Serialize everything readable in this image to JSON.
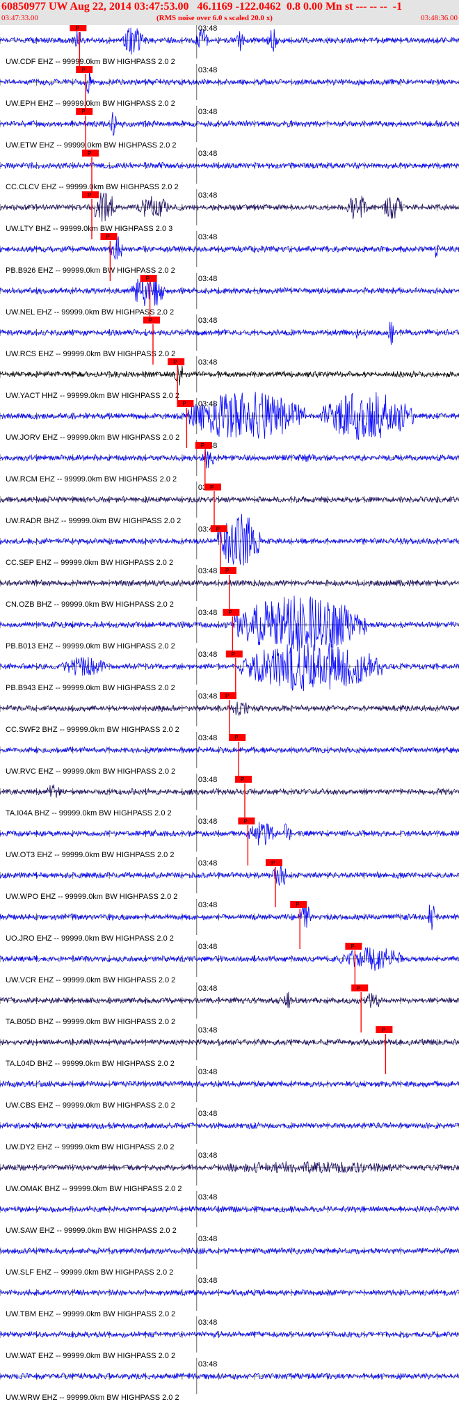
{
  "header": {
    "title": "60850977 UW Aug 22, 2014 03:47:53.00   46.1169 -122.0462  0.8 0.00 Mn st --- -- --  -1",
    "start_time": "03:47:33.00",
    "noise_note": "(RMS noise over 6.0 s scaled 20.0 x)",
    "end_time": "03:48:36.00"
  },
  "chart_data": {
    "type": "line",
    "title": "60850977 UW Aug 22, 2014 03:47:53.00   46.1169 -122.0462  0.8 0.00 Mn st --- -- --  -1",
    "x_range": [
      "03:47:33.00",
      "03:48:36.00"
    ],
    "minute_marker_label": "03:48",
    "pick_label": "P",
    "grid": false,
    "colors": {
      "trace_ehz": "#0000ff",
      "trace_bhz": "#1a0a5e",
      "trace_hhz": "#000000",
      "pick": "#ff0000",
      "axis": "#000000"
    },
    "traces": [
      {
        "label": "UW.CDF EHZ -- 99999.0km BW  HIGHPASS  2.0  2",
        "pick_s": 26,
        "bursts": [
          [
            24,
            27,
            2.5
          ],
          [
            40,
            47,
            3.5
          ],
          [
            64,
            68,
            3.0
          ],
          [
            77,
            80,
            2.8
          ],
          [
            87,
            91,
            3.0
          ]
        ]
      },
      {
        "label": "UW.EPH EHZ -- 99999.0km BW  HIGHPASS  2.0  2",
        "pick_s": 28,
        "bursts": [
          [
            28,
            30,
            4.0
          ]
        ]
      },
      {
        "label": "UW.ETW EHZ -- 99999.0km BW  HIGHPASS  2.0  2",
        "pick_s": 28,
        "bursts": [
          [
            28,
            29,
            1.5
          ],
          [
            36,
            38,
            4.0
          ],
          [
            94,
            95,
            1.5
          ]
        ]
      },
      {
        "label": "CC.CLCV EHZ -- 99999.0km BW  HIGHPASS  2.0  2",
        "pick_s": 30,
        "bursts": [
          [
            30,
            32,
            1.0
          ]
        ]
      },
      {
        "label": "UW.LTY BHZ -- 99999.0km BW  HIGHPASS  2.0  3",
        "pick_s": 30,
        "bursts": [
          [
            30,
            38,
            4.0
          ],
          [
            45,
            55,
            3.0
          ],
          [
            113,
            120,
            3.5
          ],
          [
            125,
            132,
            3.0
          ]
        ]
      },
      {
        "label": "PB.B926 EHZ -- 99999.0km BW  HIGHPASS  2.0  2",
        "pick_s": 36,
        "bursts": [
          [
            36,
            40,
            3.5
          ],
          [
            142,
            144,
            3.0
          ]
        ]
      },
      {
        "label": "UW.NEL EHZ -- 99999.0km BW  HIGHPASS  2.0  2",
        "pick_s": 49,
        "bursts": [
          [
            43,
            54,
            4.5
          ]
        ]
      },
      {
        "label": "UW.RCS EHZ -- 99999.0km BW  HIGHPASS  2.0  2",
        "pick_s": 50,
        "bursts": [
          [
            27,
            28,
            1.5
          ],
          [
            116,
            117,
            1.5
          ],
          [
            127,
            129,
            3.5
          ]
        ]
      },
      {
        "label": "UW.YACT HHZ -- 99999.0km BW  HIGHPASS  2.0  2",
        "pick_s": 58,
        "bursts": [
          [
            57,
            60,
            3.5
          ]
        ]
      },
      {
        "label": "UW.JORV EHZ -- 99999.0km BW  HIGHPASS  2.0  2",
        "pick_s": 61,
        "bursts": [
          [
            61,
            100,
            6.0
          ],
          [
            105,
            135,
            6.0
          ]
        ]
      },
      {
        "label": "UW.RCM EHZ -- 99999.0km BW  HIGHPASS  2.0  2",
        "pick_s": 67,
        "bursts": [
          [
            66,
            70,
            3.0
          ],
          [
            95,
            105,
            1.0
          ]
        ]
      },
      {
        "label": "UW.RADR BHZ -- 99999.0km BW  HIGHPASS  2.0  2",
        "pick_s": 70,
        "bursts": []
      },
      {
        "label": "CC.SEP EHZ -- 99999.0km BW  HIGHPASS  2.0  2",
        "pick_s": 72,
        "bursts": [
          [
            71,
            85,
            7.0
          ]
        ]
      },
      {
        "label": "CN.OZB BHZ -- 99999.0km BW  HIGHPASS  2.0  2",
        "pick_s": 75,
        "bursts": []
      },
      {
        "label": "PB.B013 EHZ -- 99999.0km BW  HIGHPASS  2.0  2",
        "pick_s": 76,
        "bursts": [
          [
            76,
            120,
            7.0
          ]
        ]
      },
      {
        "label": "PB.B943 EHZ -- 99999.0km BW  HIGHPASS  2.0  2",
        "pick_s": 77,
        "bursts": [
          [
            20,
            35,
            2.5
          ],
          [
            78,
            125,
            6.0
          ]
        ]
      },
      {
        "label": "CC.SWF2 BHZ -- 99999.0km BW  HIGHPASS  2.0  2",
        "pick_s": 75,
        "bursts": [
          [
            75,
            82,
            2.0
          ]
        ]
      },
      {
        "label": "UW.RVC EHZ -- 99999.0km BW  HIGHPASS  2.0  2",
        "pick_s": 78,
        "bursts": []
      },
      {
        "label": "TA.I04A BHZ -- 99999.0km BW  HIGHPASS  2.0  2",
        "pick_s": 80,
        "bursts": [
          [
            15,
            20,
            2.0
          ]
        ]
      },
      {
        "label": "UW.OT3 EHZ -- 99999.0km BW  HIGHPASS  2.0  2",
        "pick_s": 81,
        "bursts": [
          [
            81,
            90,
            3.0
          ],
          [
            92,
            95,
            3.5
          ]
        ]
      },
      {
        "label": "UW.WPO EHZ -- 99999.0km BW  HIGHPASS  2.0  2",
        "pick_s": 90,
        "bursts": [
          [
            89,
            94,
            3.0
          ]
        ]
      },
      {
        "label": "UO.JRO EHZ -- 99999.0km BW  HIGHPASS  2.0  2",
        "pick_s": 98,
        "bursts": [
          [
            98,
            102,
            3.5
          ],
          [
            140,
            142,
            4.5
          ]
        ]
      },
      {
        "label": "UW.VCR EHZ -- 99999.0km BW  HIGHPASS  2.0  2",
        "pick_s": 116,
        "bursts": [
          [
            111,
            132,
            3.0
          ]
        ]
      },
      {
        "label": "TA.B05D BHZ -- 99999.0km BW  HIGHPASS  2.0  2",
        "pick_s": 118,
        "bursts": [
          [
            93,
            95,
            2.5
          ],
          [
            120,
            124,
            3.5
          ]
        ]
      },
      {
        "label": "TA.L04D BHZ -- 99999.0km BW  HIGHPASS  2.0  2",
        "pick_s": 126,
        "bursts": []
      },
      {
        "label": "UW.CBS EHZ -- 99999.0km BW  HIGHPASS  2.0  2",
        "pick_s": null,
        "bursts": []
      },
      {
        "label": "UW.DY2 EHZ -- 99999.0km BW  HIGHPASS  2.0  2",
        "pick_s": null,
        "bursts": []
      },
      {
        "label": "UW.OMAK BHZ -- 99999.0km BW  HIGHPASS  2.0  2",
        "pick_s": null,
        "bursts": [
          [
            65,
            135,
            1.5
          ]
        ]
      },
      {
        "label": "UW.SAW EHZ -- 99999.0km BW  HIGHPASS  2.0  2",
        "pick_s": null,
        "bursts": []
      },
      {
        "label": "UW.SLF EHZ -- 99999.0km BW  HIGHPASS  2.0  2",
        "pick_s": null,
        "bursts": []
      },
      {
        "label": "UW.TBM EHZ -- 99999.0km BW  HIGHPASS  2.0  2",
        "pick_s": null,
        "bursts": []
      },
      {
        "label": "UW.WAT EHZ -- 99999.0km BW  HIGHPASS  2.0  2",
        "pick_s": null,
        "bursts": []
      },
      {
        "label": "UW.WRW EHZ -- 99999.0km BW  HIGHPASS  2.0  2",
        "pick_s": null,
        "bursts": []
      }
    ]
  }
}
